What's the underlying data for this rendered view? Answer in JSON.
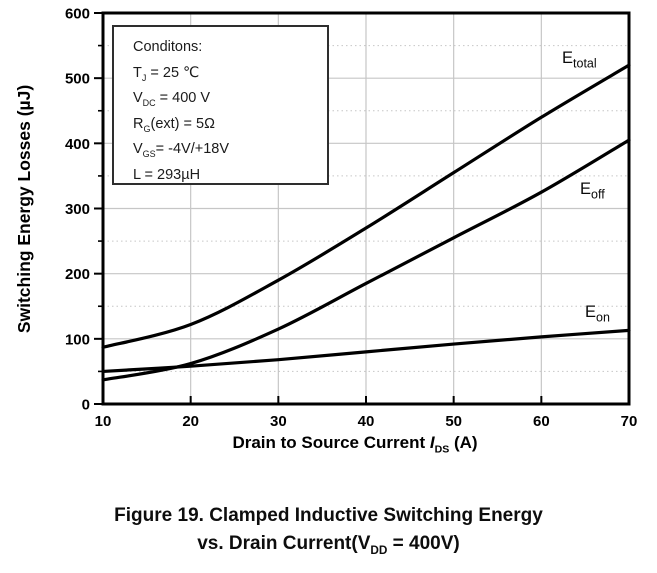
{
  "chart_data": {
    "type": "line",
    "title": "",
    "ylabel": "Switching Energy Losses (µJ)",
    "xlabel_segments": [
      {
        "t": "Drain to Source Current "
      },
      {
        "t": "I",
        "i": true
      },
      {
        "t": "DS",
        "sub": true
      },
      {
        "t": " (A)"
      }
    ],
    "xlim": [
      10,
      70
    ],
    "ylim": [
      0,
      600
    ],
    "x_ticks": [
      10,
      20,
      30,
      40,
      50,
      60,
      70
    ],
    "y_ticks": [
      0,
      100,
      200,
      300,
      400,
      500,
      600
    ],
    "y_minor_ticks": [
      50,
      150,
      250,
      350,
      450,
      550
    ],
    "grid": {
      "on": true,
      "v_solid": [
        20,
        30,
        40,
        50,
        60
      ],
      "h_solid": [
        100,
        200,
        300,
        400,
        500
      ],
      "h_dotted": [
        50,
        150,
        250,
        350,
        450,
        550
      ]
    },
    "x": [
      10,
      20,
      30,
      40,
      50,
      60,
      70
    ],
    "series": [
      {
        "name": "E_total",
        "label": [
          {
            "t": "E"
          },
          {
            "t": "total",
            "sub": true
          }
        ],
        "values": [
          87,
          122,
          190,
          270,
          355,
          440,
          520
        ]
      },
      {
        "name": "E_off",
        "label": [
          {
            "t": "E"
          },
          {
            "t": "off",
            "sub": true
          }
        ],
        "values": [
          37,
          62,
          115,
          185,
          255,
          325,
          405
        ]
      },
      {
        "name": "E_on",
        "label": [
          {
            "t": "E"
          },
          {
            "t": "on",
            "sub": true
          }
        ],
        "values": [
          50,
          58,
          68,
          80,
          92,
          103,
          113
        ]
      }
    ],
    "line_color": "#000000",
    "grid_color": "#c6c6c6",
    "legend_position": "inline-labels"
  },
  "conditions_box": {
    "title": "Conditons:",
    "lines": [
      [
        {
          "t": "T"
        },
        {
          "t": "J",
          "sub": true
        },
        {
          "t": " = 25 ℃"
        }
      ],
      [
        {
          "t": "V"
        },
        {
          "t": "DC",
          "sub": true
        },
        {
          "t": " = 400 V"
        }
      ],
      [
        {
          "t": "R"
        },
        {
          "t": "G",
          "sub": true
        },
        {
          "t": "(ext) = 5Ω"
        }
      ],
      [
        {
          "t": "V"
        },
        {
          "t": "GS",
          "sub": true
        },
        {
          "t": "= -4V/+18V"
        }
      ],
      [
        {
          "t": "L = 293µH"
        }
      ]
    ]
  },
  "caption": {
    "line1": "Figure 19. Clamped Inductive Switching Energy",
    "line2_segments": [
      {
        "t": "vs. Drain Current(V"
      },
      {
        "t": "DD",
        "sub": true
      },
      {
        "t": " = 400V)"
      }
    ]
  }
}
